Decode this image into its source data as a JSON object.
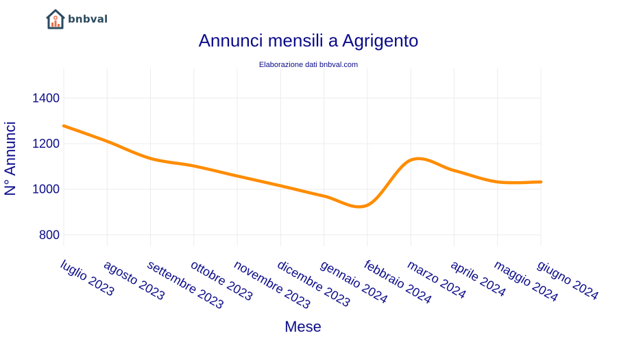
{
  "brand": {
    "name": "bnbval",
    "logo_icon": "house-chart-icon",
    "colors": {
      "roof": "#2b4a5e",
      "bars": "#e8704c"
    }
  },
  "chart_data": {
    "type": "line",
    "title": "Annunci mensili a Agrigento",
    "subtitle": "Elaborazione dati bnbval.com",
    "xlabel": "Mese",
    "ylabel": "N° Annunci",
    "categories": [
      "luglio 2023",
      "agosto 2023",
      "settembre 2023",
      "ottobre 2023",
      "novembre 2023",
      "dicembre 2023",
      "gennaio 2024",
      "febbraio 2024",
      "marzo 2024",
      "aprile 2024",
      "maggio 2024",
      "giugno 2024"
    ],
    "series": [
      {
        "values": [
          1278,
          1210,
          1135,
          1102,
          1058,
          1015,
          970,
          930,
          1128,
          1082,
          1032,
          1032
        ],
        "color": "#ff8c00"
      }
    ],
    "ylim": [
      750,
      1530
    ],
    "yticks": [
      800,
      1000,
      1200,
      1400
    ],
    "grid": true
  }
}
